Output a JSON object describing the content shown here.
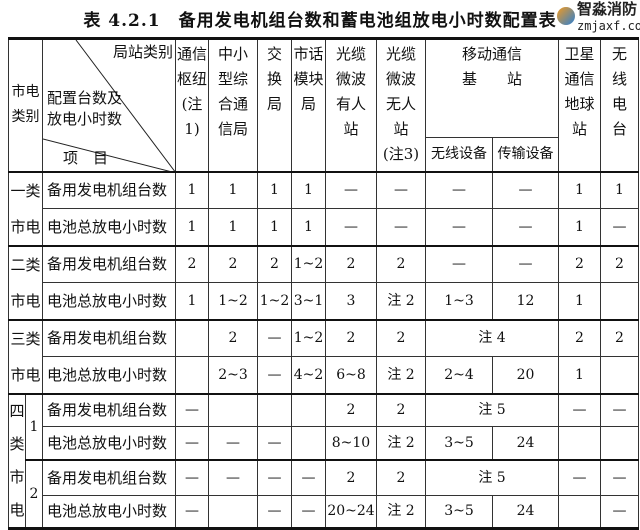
{
  "title": "表 4.2.1　备用发电机组台数和蓄电池组放电小时数配置表",
  "header": {
    "category": "市电\n类别",
    "diag_top": "局站类别",
    "diag_mid": "配置台数及\n放电小时数",
    "diag_bottom": "项　目",
    "columns": [
      "通信\n枢纽\n(注1)",
      "中小\n型综\n合通\n信局",
      "交\n换\n局",
      "市话\n模块\n局",
      "光缆\n微波\n有人\n站",
      "光缆\n微波\n无人\n站\n(注3)"
    ],
    "mobile": "移动通信\n基　　站",
    "mobile_sub": [
      "无线设备",
      "传输设备"
    ],
    "satellite": "卫星\n通信\n地球\n站",
    "radio": "无\n线\n电\n台"
  },
  "groups": [
    {
      "category": "一类\n市电",
      "rows": [
        {
          "item": "备用发电机组台数",
          "cells": [
            {
              "t": "1"
            },
            {
              "t": "1"
            },
            {
              "t": "1"
            },
            {
              "t": "1"
            },
            {
              "t": "—"
            },
            {
              "t": "—"
            },
            {
              "t": "—"
            },
            {
              "t": "—"
            },
            {
              "t": "1"
            },
            {
              "t": "1"
            }
          ]
        },
        {
          "item": "电池总放电小时数",
          "cells": [
            {
              "t": "1"
            },
            {
              "t": "1"
            },
            {
              "t": "1"
            },
            {
              "t": "1"
            },
            {
              "t": "—"
            },
            {
              "t": "—"
            },
            {
              "t": "—"
            },
            {
              "t": "—"
            },
            {
              "t": "1"
            },
            {
              "t": "—"
            }
          ]
        }
      ]
    },
    {
      "category": "二类\n市电",
      "rows": [
        {
          "item": "备用发电机组台数",
          "cells": [
            {
              "t": "2"
            },
            {
              "t": "2"
            },
            {
              "t": "2"
            },
            {
              "t": "1~2"
            },
            {
              "t": "2"
            },
            {
              "t": "2"
            },
            {
              "t": "—"
            },
            {
              "t": "—"
            },
            {
              "t": "2"
            },
            {
              "t": "2"
            }
          ]
        },
        {
          "item": "电池总放电小时数",
          "cells": [
            {
              "t": "1"
            },
            {
              "t": "1~2"
            },
            {
              "t": "1~2"
            },
            {
              "t": "3~1"
            },
            {
              "t": "3"
            },
            {
              "t": "注 2"
            },
            {
              "t": "1~3"
            },
            {
              "t": "12"
            },
            {
              "t": "1"
            },
            {
              "t": ""
            }
          ]
        }
      ]
    },
    {
      "category": "三类\n市电",
      "rows": [
        {
          "item": "备用发电机组台数",
          "cells": [
            {
              "t": ""
            },
            {
              "t": "2"
            },
            {
              "t": "—"
            },
            {
              "t": "1~2"
            },
            {
              "t": "2"
            },
            {
              "t": "2"
            },
            {
              "t": "注 4",
              "span": 2
            },
            {
              "t": "2"
            },
            {
              "t": "2"
            }
          ]
        },
        {
          "item": "电池总放电小时数",
          "cells": [
            {
              "t": ""
            },
            {
              "t": "2~3"
            },
            {
              "t": "—"
            },
            {
              "t": "4~2"
            },
            {
              "t": "6~8"
            },
            {
              "t": "注 2"
            },
            {
              "t": "2~4"
            },
            {
              "t": "20"
            },
            {
              "t": "1"
            },
            {
              "t": ""
            }
          ]
        }
      ]
    }
  ],
  "group4": {
    "category": "四\n类\n市\n电",
    "subgroups": [
      {
        "label": "1",
        "rows": [
          {
            "item": "备用发电机组台数",
            "cells": [
              {
                "t": "—"
              },
              {
                "t": ""
              },
              {
                "t": ""
              },
              {
                "t": ""
              },
              {
                "t": "2"
              },
              {
                "t": "2"
              },
              {
                "t": "注 5",
                "span": 2
              },
              {
                "t": "—"
              },
              {
                "t": "—"
              }
            ]
          },
          {
            "item": "电池总放电小时数",
            "cells": [
              {
                "t": "—"
              },
              {
                "t": "—"
              },
              {
                "t": "—"
              },
              {
                "t": ""
              },
              {
                "t": "8~10"
              },
              {
                "t": "注 2"
              },
              {
                "t": "3~5"
              },
              {
                "t": "24"
              },
              {
                "t": ""
              },
              {
                "t": ""
              }
            ]
          }
        ]
      },
      {
        "label": "2",
        "rows": [
          {
            "item": "备用发电机组台数",
            "cells": [
              {
                "t": "—"
              },
              {
                "t": "—"
              },
              {
                "t": "—"
              },
              {
                "t": "—"
              },
              {
                "t": "2"
              },
              {
                "t": "2"
              },
              {
                "t": "注 5",
                "span": 2
              },
              {
                "t": "—"
              },
              {
                "t": "—"
              }
            ]
          },
          {
            "item": "电池总放电小时数",
            "cells": [
              {
                "t": "—"
              },
              {
                "t": ""
              },
              {
                "t": "—"
              },
              {
                "t": "—"
              },
              {
                "t": "20~24"
              },
              {
                "t": "注 2"
              },
              {
                "t": "3~5"
              },
              {
                "t": "24"
              },
              {
                "t": ""
              },
              {
                "t": "—"
              }
            ]
          }
        ]
      }
    ]
  },
  "watermark": {
    "name": "智淼消防",
    "url": "zmjaxf.com"
  }
}
